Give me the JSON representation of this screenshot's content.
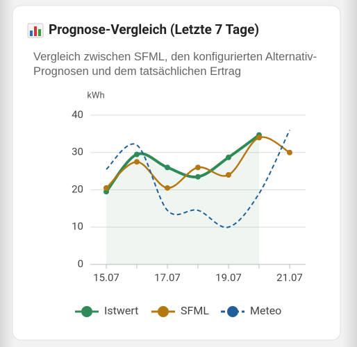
{
  "chart_data": {
    "type": "line",
    "title": "Prognose-Vergleich (Letzte 7 Tage)",
    "subtitle": "Vergleich zwischen SFML, den konfigurierten Alternativ-Prognosen und dem tatsächlichen Ertrag",
    "y_label": "kWh",
    "categories": [
      "15.07",
      null,
      "17.07",
      null,
      "19.07",
      null,
      "21.07"
    ],
    "ylim": [
      0,
      40
    ],
    "yticks": [
      0,
      10,
      20,
      30,
      40
    ],
    "grid": true,
    "series": [
      {
        "name": "Istwert",
        "color": "#2e8b57",
        "values": [
          19.5,
          29.5,
          26,
          23.5,
          28.7,
          34.7,
          null
        ],
        "fill": true,
        "markers": true,
        "dashed": false
      },
      {
        "name": "SFML",
        "color": "#b5770f",
        "values": [
          20.5,
          27.5,
          20.5,
          26,
          24,
          34,
          30
        ],
        "fill": false,
        "markers": true,
        "dashed": false
      },
      {
        "name": "Meteo",
        "color": "#1f5f99",
        "values": [
          25.5,
          32,
          14.5,
          14.5,
          10,
          19,
          36
        ],
        "fill": false,
        "markers": false,
        "dashed": true
      }
    ]
  }
}
